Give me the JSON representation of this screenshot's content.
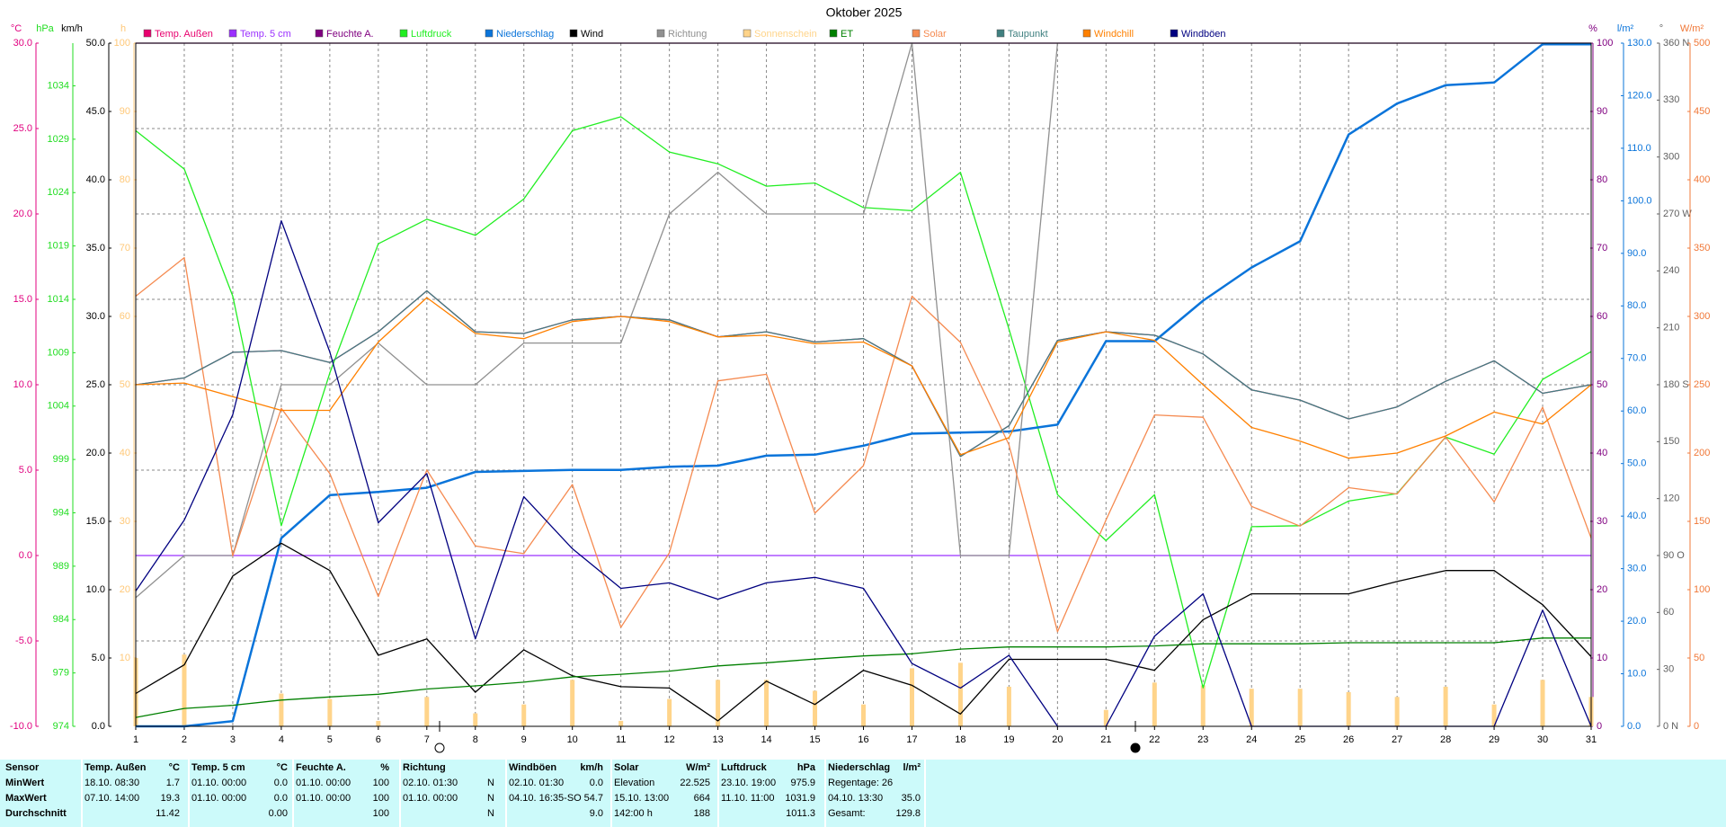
{
  "chart_data": {
    "type": "line",
    "title": "Oktober 2025",
    "categories": [
      "1",
      "2",
      "3",
      "4",
      "5",
      "6",
      "7",
      "8",
      "9",
      "10",
      "11",
      "12",
      "13",
      "14",
      "15",
      "16",
      "17",
      "18",
      "19",
      "20",
      "21",
      "22",
      "23",
      "24",
      "25",
      "26",
      "27",
      "28",
      "29",
      "30",
      "31"
    ],
    "grid": true,
    "axes": {
      "y_temp": {
        "label": "°C",
        "side": "left",
        "color": "#e0007f",
        "lim": [
          -10,
          30
        ],
        "ticks": [
          {
            "value": -10,
            "label": "-10.0"
          },
          {
            "value": -5,
            "label": "-5.0"
          },
          {
            "value": 0,
            "label": "0.0"
          },
          {
            "value": 5,
            "label": "5.0"
          },
          {
            "value": 10,
            "label": "10.0"
          },
          {
            "value": 15,
            "label": "15.0"
          },
          {
            "value": 20,
            "label": "20.0"
          },
          {
            "value": 25,
            "label": "25.0"
          },
          {
            "value": 30,
            "label": "30.0"
          }
        ]
      },
      "y_pressure": {
        "label": "hPa",
        "side": "left",
        "color": "#22dd22",
        "lim": [
          974,
          1038
        ],
        "ticks": [
          974,
          979,
          984,
          989,
          994,
          999,
          1004,
          1009,
          1014,
          1019,
          1024,
          1029,
          1034
        ]
      },
      "y_wind": {
        "label": "km/h",
        "side": "left",
        "color": "#000000",
        "lim": [
          0,
          50
        ],
        "ticks": [
          {
            "value": 0,
            "label": "0.0"
          },
          {
            "value": 5,
            "label": "5.0"
          },
          {
            "value": 10,
            "label": "10.0"
          },
          {
            "value": 15,
            "label": "15.0"
          },
          {
            "value": 20,
            "label": "20.0"
          },
          {
            "value": 25,
            "label": "25.0"
          },
          {
            "value": 30,
            "label": "30.0"
          },
          {
            "value": 35,
            "label": "35.0"
          },
          {
            "value": 40,
            "label": "40.0"
          },
          {
            "value": 45,
            "label": "45.0"
          },
          {
            "value": 50,
            "label": "50.0"
          }
        ]
      },
      "y_sun": {
        "label": "h",
        "side": "left",
        "color": "#ffc878",
        "lim": [
          0,
          100
        ],
        "ticks": [
          10,
          20,
          30,
          40,
          50,
          60,
          70,
          80,
          90,
          100
        ]
      },
      "y_hum": {
        "label": "%",
        "side": "right",
        "color": "#800080",
        "lim": [
          0,
          100
        ],
        "ticks": [
          0,
          10,
          20,
          30,
          40,
          50,
          60,
          70,
          80,
          90,
          100
        ]
      },
      "y_rain": {
        "label": "l/m²",
        "side": "right",
        "color": "#0a74da",
        "lim": [
          0,
          130
        ],
        "ticks": [
          {
            "value": 0,
            "label": "0.0"
          },
          {
            "value": 10,
            "label": "10.0"
          },
          {
            "value": 20,
            "label": "20.0"
          },
          {
            "value": 30,
            "label": "30.0"
          },
          {
            "value": 40,
            "label": "40.0"
          },
          {
            "value": 50,
            "label": "50.0"
          },
          {
            "value": 60,
            "label": "60.0"
          },
          {
            "value": 70,
            "label": "70.0"
          },
          {
            "value": 80,
            "label": "80.0"
          },
          {
            "value": 90,
            "label": "90.0"
          },
          {
            "value": 100,
            "label": "100.0"
          },
          {
            "value": 110,
            "label": "110.0"
          },
          {
            "value": 120,
            "label": "120.0"
          },
          {
            "value": 130,
            "label": "130.0"
          }
        ]
      },
      "y_dir": {
        "label": "°",
        "side": "right",
        "color": "#606060",
        "lim": [
          0,
          360
        ],
        "ticks": [
          {
            "value": 0,
            "label": "0 N"
          },
          30,
          60,
          {
            "value": 90,
            "label": "90 O"
          },
          120,
          150,
          {
            "value": 180,
            "label": "180 S"
          },
          210,
          240,
          {
            "value": 270,
            "label": "270 W"
          },
          300,
          330,
          {
            "value": 360,
            "label": "360 N"
          }
        ]
      },
      "y_solar": {
        "label": "W/m²",
        "side": "right",
        "color": "#f07838",
        "lim": [
          0,
          500
        ],
        "ticks": [
          0,
          50,
          100,
          150,
          200,
          250,
          300,
          350,
          400,
          450,
          500
        ]
      }
    },
    "series": [
      {
        "name": "Temp. Außen",
        "color": "#e8006e",
        "axis": "y_temp",
        "values": [
          10.0,
          10.4,
          11.9,
          12.0,
          11.3,
          13.1,
          15.5,
          13.1,
          13.0,
          13.8,
          14.0,
          13.8,
          12.8,
          13.1,
          12.5,
          12.7,
          11.1,
          5.8,
          7.6,
          12.6,
          13.1,
          12.9,
          11.8,
          9.7,
          9.1,
          8.0,
          8.7,
          10.2,
          11.4,
          9.5,
          10.0
        ]
      },
      {
        "name": "Temp. 5 cm",
        "color": "#9b30ff",
        "axis": "y_temp",
        "values": [
          0,
          0,
          0,
          0,
          0,
          0,
          0,
          0,
          0,
          0,
          0,
          0,
          0,
          0,
          0,
          0,
          0,
          0,
          0,
          0,
          0,
          0,
          0,
          0,
          0,
          0,
          0,
          0,
          0,
          0,
          0
        ]
      },
      {
        "name": "Feuchte A.",
        "color": "#800080",
        "axis": "y_hum",
        "values": [
          100,
          100,
          100,
          100,
          100,
          100,
          100,
          100,
          100,
          100,
          100,
          100,
          100,
          100,
          100,
          100,
          100,
          100,
          100,
          100,
          100,
          100,
          100,
          100,
          100,
          100,
          100,
          100,
          100,
          100,
          100
        ]
      },
      {
        "name": "Luftdruck",
        "color": "#22ee22",
        "axis": "y_pressure",
        "values": [
          1029.8,
          1026.2,
          1014.3,
          992.8,
          1007.1,
          1019.2,
          1021.5,
          1020.0,
          1023.4,
          1029.8,
          1031.1,
          1027.8,
          1026.7,
          1024.6,
          1024.9,
          1022.6,
          1022.3,
          1025.9,
          1011.2,
          995.7,
          991.4,
          995.7,
          977.6,
          992.7,
          992.8,
          995.1,
          995.8,
          1001.1,
          999.5,
          1006.5,
          1009.1
        ]
      },
      {
        "name": "Niederschlag",
        "color": "#0a74da",
        "axis": "y_rain",
        "values": [
          0.0,
          0.0,
          1.0,
          35.8,
          44.0,
          44.6,
          45.4,
          48.4,
          48.6,
          48.8,
          48.8,
          49.4,
          49.6,
          51.5,
          51.7,
          53.4,
          55.7,
          55.9,
          56.1,
          57.4,
          73.3,
          73.3,
          81.0,
          87.3,
          92.3,
          112.6,
          118.5,
          122.0,
          122.5,
          129.8,
          129.8
        ]
      },
      {
        "name": "Wind",
        "color": "#000000",
        "axis": "y_wind",
        "values": [
          2.4,
          4.5,
          11.0,
          13.4,
          11.4,
          5.2,
          6.4,
          2.5,
          5.6,
          3.7,
          2.9,
          2.8,
          0.4,
          3.3,
          1.6,
          4.1,
          3.0,
          0.9,
          4.9,
          4.9,
          4.9,
          4.1,
          7.8,
          9.7,
          9.7,
          9.7,
          10.6,
          11.4,
          11.4,
          8.9,
          5.1
        ]
      },
      {
        "name": "Richtung",
        "color": "#909090",
        "axis": "y_dir",
        "values": [
          67.8,
          90,
          90,
          180,
          180,
          202,
          180,
          180,
          202,
          202,
          202,
          270,
          292,
          270,
          270,
          270,
          360,
          90,
          90,
          360,
          null,
          null,
          null,
          null,
          null,
          null,
          null,
          null,
          null,
          null,
          null
        ]
      },
      {
        "name": "Sonnenschein",
        "color": "#ffd48a",
        "axis": "y_sun",
        "type": "bar",
        "values": [
          10,
          10.5,
          0,
          4.8,
          4,
          0.8,
          4.3,
          1.9,
          3.2,
          6.8,
          0.8,
          4,
          6.8,
          6.8,
          5.2,
          3.2,
          8.5,
          9.3,
          5.8,
          0,
          2.4,
          6.4,
          6.0,
          5.5,
          5.5,
          5,
          4.3,
          5.8,
          3.2,
          6.8,
          4.3
        ]
      },
      {
        "name": "ET",
        "color": "#008000",
        "axis": "y_rain",
        "values": [
          1.7,
          3.4,
          4.0,
          5.0,
          5.6,
          6.1,
          7.1,
          7.7,
          8.4,
          9.4,
          9.9,
          10.5,
          11.5,
          12.1,
          12.8,
          13.4,
          13.8,
          14.7,
          15.1,
          15.1,
          15.1,
          15.3,
          15.7,
          15.7,
          15.7,
          15.9,
          15.9,
          15.9,
          15.9,
          16.8,
          16.8
        ]
      },
      {
        "name": "Solar",
        "color": "#f58a50",
        "axis": "y_solar",
        "values": [
          314.8,
          343,
          124.8,
          232.7,
          185,
          95,
          187.6,
          132,
          126.4,
          177,
          72.5,
          127,
          252.8,
          257.6,
          156,
          190.8,
          314.8,
          281,
          206,
          69.2,
          151,
          227.9,
          226.2,
          161,
          146.5,
          174.7,
          170,
          211.8,
          164.3,
          233.5,
          137.7
        ]
      },
      {
        "name": "Taupunkt",
        "color": "#408080",
        "axis": "y_temp",
        "values": [
          10.0,
          10.4,
          11.9,
          12.0,
          11.3,
          13.1,
          15.5,
          13.1,
          13.0,
          13.8,
          14.0,
          13.8,
          12.8,
          13.1,
          12.5,
          12.7,
          11.1,
          5.8,
          7.6,
          12.6,
          13.1,
          12.9,
          11.8,
          9.7,
          9.1,
          8.0,
          8.7,
          10.2,
          11.4,
          9.5,
          10.0
        ]
      },
      {
        "name": "Windchill",
        "color": "#ff8000",
        "axis": "y_temp",
        "values": [
          10.0,
          10.1,
          9.3,
          8.5,
          8.5,
          12.5,
          15.1,
          13.0,
          12.7,
          13.7,
          14.0,
          13.7,
          12.8,
          12.9,
          12.4,
          12.5,
          11.1,
          5.9,
          6.9,
          12.5,
          13.1,
          12.6,
          10.0,
          7.5,
          6.7,
          5.7,
          6.0,
          7.0,
          8.4,
          7.7,
          10.0
        ]
      },
      {
        "name": "Windböen",
        "color": "#000080",
        "axis": "y_wind",
        "values": [
          9.9,
          15.1,
          22.8,
          37.0,
          27.4,
          14.9,
          18.5,
          6.4,
          16.8,
          13.0,
          10.1,
          10.5,
          9.3,
          10.5,
          10.9,
          10.1,
          4.6,
          2.8,
          5.2,
          0,
          0,
          6.6,
          9.7,
          0,
          0,
          0,
          0,
          0,
          0,
          8.5,
          0
        ]
      }
    ]
  },
  "table": {
    "row_labels": [
      "Sensor",
      "MinWert",
      "MaxWert",
      "Durchschnitt"
    ],
    "groups": [
      {
        "name": "Temp. Außen",
        "unit": "°C",
        "cells": [
          [
            "18.10. 08:30",
            "1.7"
          ],
          [
            "07.10. 14:00",
            "19.3"
          ],
          [
            null,
            "11.42"
          ]
        ]
      },
      {
        "name": "Temp. 5 cm",
        "unit": "°C",
        "cells": [
          [
            "01.10. 00:00",
            "0.0"
          ],
          [
            "01.10. 00:00",
            "0.0"
          ],
          [
            null,
            "0.00"
          ]
        ]
      },
      {
        "name": "Feuchte A.",
        "unit": "%",
        "cells": [
          [
            "01.10. 00:00",
            "100"
          ],
          [
            "01.10. 00:00",
            "100"
          ],
          [
            null,
            "100"
          ]
        ]
      },
      {
        "name": "Richtung",
        "unit": null,
        "cells": [
          [
            "02.10. 01:30",
            "N"
          ],
          [
            "01.10. 00:00",
            "N"
          ],
          [
            null,
            "N"
          ]
        ]
      },
      {
        "name": "Windböen",
        "unit": "km/h",
        "cells": [
          [
            "02.10. 01:30",
            "0.0"
          ],
          [
            "04.10. 16:35-SO",
            "54.7"
          ],
          [
            null,
            "9.0"
          ]
        ]
      },
      {
        "name": "Solar",
        "unit": "W/m²",
        "cells": [
          [
            "Elevation",
            "22.525"
          ],
          [
            "15.10. 13:00",
            "664"
          ],
          [
            "142:00 h",
            "188"
          ]
        ]
      },
      {
        "name": "Luftdruck",
        "unit": "hPa",
        "cells": [
          [
            "23.10. 19:00",
            "975.9"
          ],
          [
            "11.10. 11:00",
            "1031.9"
          ],
          [
            null,
            "1011.3"
          ]
        ]
      },
      {
        "name": "Niederschlag",
        "unit": "l/m²",
        "cells": [
          [
            "Regentage: 26",
            null
          ],
          [
            "04.10. 13:30",
            "35.0"
          ],
          [
            "Gesamt:",
            "129.8"
          ]
        ]
      }
    ]
  }
}
